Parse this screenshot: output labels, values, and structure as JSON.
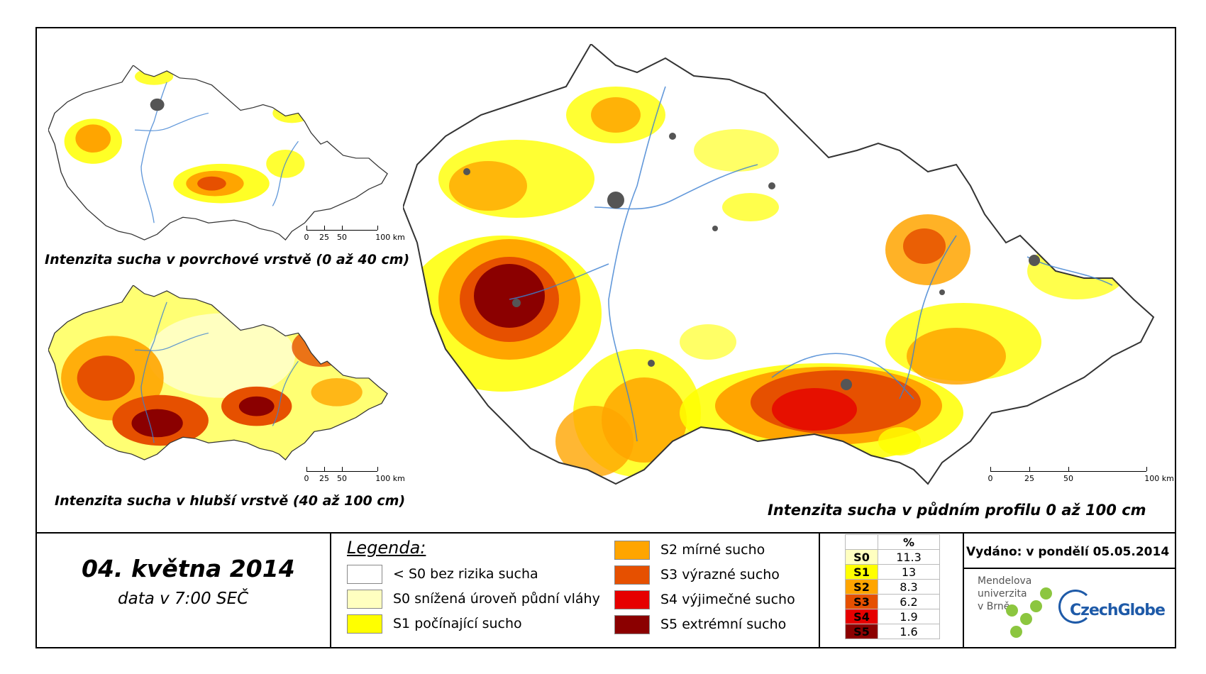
{
  "titles": {
    "map_main": "Intenzita sucha v půdním profilu 0 až 100 cm",
    "map_top": "Intenzita sucha v povrchové vrstvě (0 až 40 cm)",
    "map_bottom": "Intenzita sucha v hlubší vrstvě (40 až 100 cm)"
  },
  "scalebar": {
    "labels": [
      "0",
      "25",
      "50",
      "100 km"
    ]
  },
  "date": {
    "main": "04. května 2014",
    "sub": "data v 7:00 SEČ"
  },
  "legend": {
    "title": "Legenda:",
    "items": [
      {
        "code": "S0-",
        "label": "< S0 bez rizika sucha",
        "color": "#ffffff"
      },
      {
        "code": "S0",
        "label": "S0 snížená úroveň půdní vláhy",
        "color": "#ffffc0"
      },
      {
        "code": "S1",
        "label": "S1 počínající sucho",
        "color": "#ffff00"
      },
      {
        "code": "S2",
        "label": "S2 mírné sucho",
        "color": "#ffa500"
      },
      {
        "code": "S3",
        "label": "S3 výrazné sucho",
        "color": "#e65000"
      },
      {
        "code": "S4",
        "label": "S4 výjimečné sucho",
        "color": "#e60000"
      },
      {
        "code": "S5",
        "label": "S5 extrémní sucho",
        "color": "#8b0000"
      }
    ]
  },
  "percent_table": {
    "header": "%",
    "rows": [
      {
        "code": "S0",
        "value": "11.3",
        "color": "#ffffc0"
      },
      {
        "code": "S1",
        "value": "13",
        "color": "#ffff00"
      },
      {
        "code": "S2",
        "value": "8.3",
        "color": "#ffa500"
      },
      {
        "code": "S3",
        "value": "6.2",
        "color": "#e65000"
      },
      {
        "code": "S4",
        "value": "1.9",
        "color": "#e60000"
      },
      {
        "code": "S5",
        "value": "1.6",
        "color": "#8b0000"
      }
    ]
  },
  "issued": "Vydáno: v pondělí 05.05.2014",
  "logos": {
    "mendel": [
      "Mendelova",
      "univerzita",
      "v Brně"
    ],
    "czechglobe": "CzechGlobe"
  },
  "colors": {
    "river": "#3b7fd1",
    "city": "#555555",
    "border": "#333333"
  }
}
